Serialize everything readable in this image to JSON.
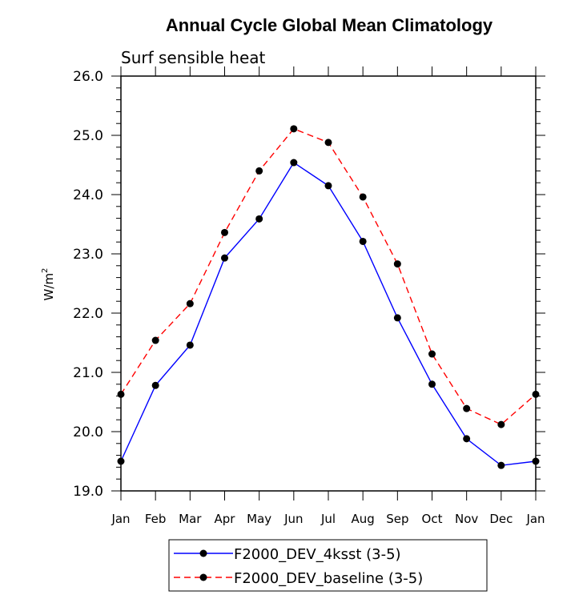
{
  "chart_data": {
    "type": "line",
    "title": "Annual Cycle Global Mean Climatology",
    "subtitle": "Surf sensible heat",
    "ylabel_base": "W/m",
    "ylabel_sup": "2",
    "xlabel": "",
    "ylim": [
      19.0,
      26.0
    ],
    "yticks": [
      "19.0",
      "20.0",
      "21.0",
      "22.0",
      "23.0",
      "24.0",
      "25.0",
      "26.0"
    ],
    "categories": [
      "Jan",
      "Feb",
      "Mar",
      "Apr",
      "May",
      "Jun",
      "Jul",
      "Aug",
      "Sep",
      "Oct",
      "Nov",
      "Dec",
      "Jan"
    ],
    "grid": false,
    "legend_placement": "bottom",
    "series": [
      {
        "name": "F2000_DEV_4ksst (3-5)",
        "color": "#0000ff",
        "dash": "solid",
        "values": [
          19.5,
          20.78,
          21.46,
          22.93,
          23.59,
          24.54,
          24.15,
          23.21,
          21.92,
          20.8,
          19.88,
          19.43,
          19.5
        ]
      },
      {
        "name": "F2000_DEV_baseline (3-5)",
        "color": "#ff0000",
        "dash": "dashed",
        "values": [
          20.63,
          21.54,
          22.16,
          23.36,
          24.4,
          25.11,
          24.88,
          23.96,
          22.83,
          21.31,
          20.39,
          20.12,
          20.63
        ]
      }
    ]
  }
}
